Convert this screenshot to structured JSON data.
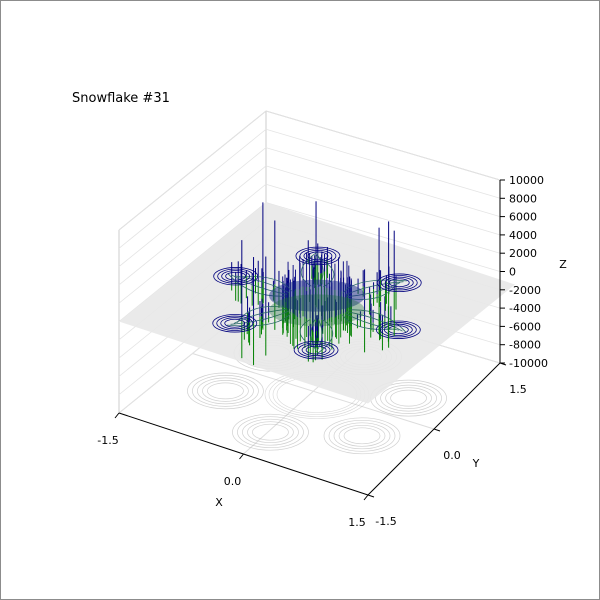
{
  "chart_data": {
    "type": "3d-surface",
    "title": "Snowflake #31",
    "xlabel": "X",
    "ylabel": "Y",
    "zlabel": "Z",
    "xlim": [
      -1.5,
      1.5
    ],
    "ylim": [
      -1.5,
      1.5
    ],
    "zlim": [
      -10000,
      10000
    ],
    "x_ticks": [
      "-1.5",
      "0.0",
      "1.5"
    ],
    "y_ticks": [
      "-1.5",
      "0.0",
      "1.5"
    ],
    "z_ticks": [
      "-10000",
      "-8000",
      "-6000",
      "-4000",
      "-2000",
      "0",
      "2000",
      "4000",
      "6000",
      "8000",
      "10000"
    ],
    "grid": true,
    "colors": {
      "positive": "#00007f",
      "negative": "#008000",
      "plane": "#e8e8e8",
      "shadow": "#b0b0b0"
    }
  }
}
